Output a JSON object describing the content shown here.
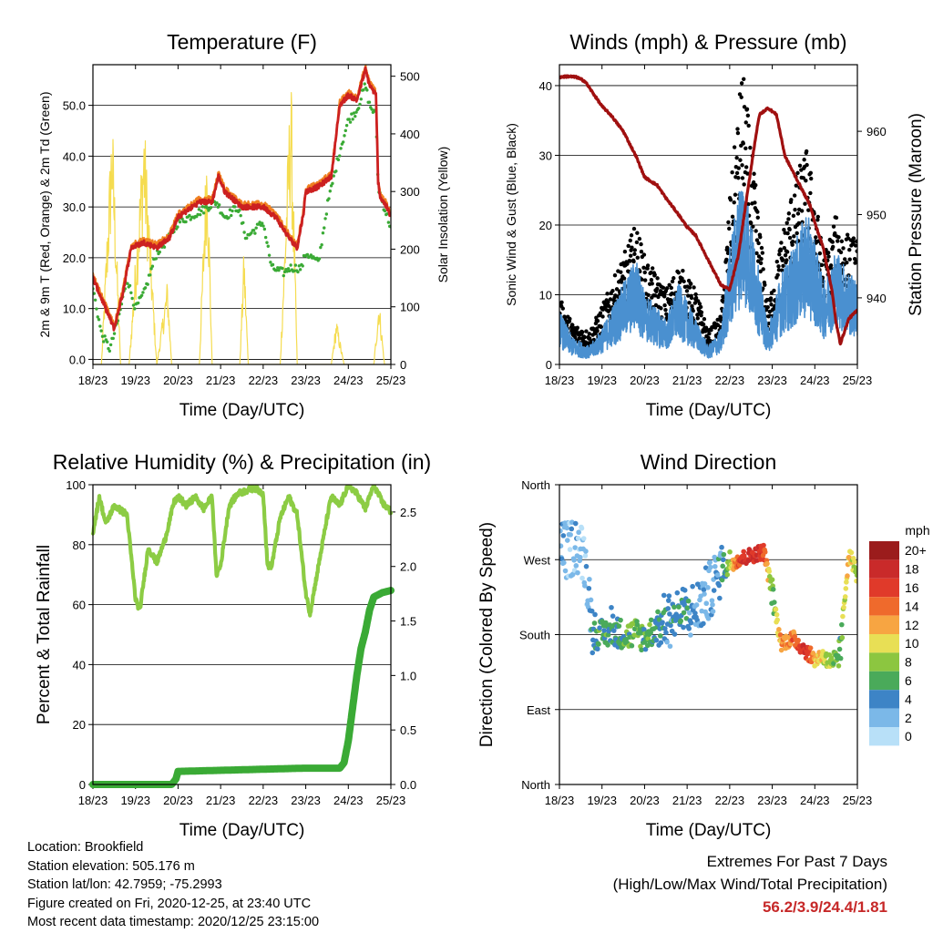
{
  "chart_data": [
    {
      "type": "line",
      "title": "Temperature (F)",
      "xlabel": "Time (Day/UTC)",
      "ylabel": "2m & 9m T (Red, Orange) & 2m Td (Green)",
      "y2label": "Solar Insolation (Yellow)",
      "x_ticks": [
        "18/23",
        "19/23",
        "20/23",
        "21/23",
        "22/23",
        "23/23",
        "24/23",
        "25/23"
      ],
      "xlim": [
        0,
        7
      ],
      "ylim": [
        -1,
        58
      ],
      "y_ticks": [
        "0.0",
        "10.0",
        "20.0",
        "30.0",
        "40.0",
        "50.0"
      ],
      "y2lim": [
        0,
        520
      ],
      "y2_ticks": [
        "0",
        "100",
        "200",
        "300",
        "400",
        "500"
      ],
      "grid": true,
      "colors": {
        "t2m": "#cc2020",
        "t9m": "#f08020",
        "td": "#3aaa35",
        "solar": "#f5dc50"
      },
      "series": [
        {
          "name": "2m T",
          "x": [
            0,
            0.3,
            0.5,
            0.7,
            0.9,
            1.2,
            1.5,
            1.8,
            2.0,
            2.5,
            2.8,
            2.95,
            3.1,
            3.5,
            4.0,
            4.3,
            4.6,
            4.8,
            4.95,
            5.0,
            5.3,
            5.6,
            5.8,
            6.0,
            6.2,
            6.4,
            6.5,
            6.65,
            6.7,
            6.75,
            6.9,
            7.0
          ],
          "y": [
            16,
            10,
            6,
            13,
            22,
            23,
            22,
            24,
            28,
            31,
            31,
            36,
            33,
            30,
            30,
            28,
            24,
            22,
            29,
            33,
            34,
            36,
            50,
            52,
            51,
            57,
            54,
            52,
            35,
            32,
            30,
            28
          ]
        },
        {
          "name": "2m Td",
          "x": [
            0,
            0.2,
            0.4,
            0.6,
            0.8,
            1.0,
            1.2,
            1.5,
            1.8,
            2.0,
            2.5,
            2.9,
            3.1,
            3.4,
            3.6,
            4.0,
            4.2,
            4.5,
            4.6,
            4.9,
            5.0,
            5.3,
            5.5,
            5.8,
            6.0,
            6.2,
            6.4,
            6.5,
            6.65,
            6.7,
            6.8,
            7.0
          ],
          "y": [
            14,
            5,
            2,
            8,
            16,
            10,
            13,
            21,
            24,
            27,
            29,
            31,
            28,
            30,
            24,
            27,
            18,
            17,
            18,
            18,
            21,
            19,
            30,
            41,
            47,
            49,
            54,
            50,
            48,
            34,
            31,
            26
          ]
        },
        {
          "name": "Solar",
          "x": [
            0.2,
            0.45,
            0.65,
            0.85,
            1.2,
            1.5,
            1.75,
            1.85,
            2.0,
            2.5,
            2.68,
            2.8,
            3.0,
            3.45,
            3.55,
            3.65,
            3.8,
            4.4,
            4.65,
            4.8,
            5.2,
            5.6,
            5.72,
            5.9,
            6.6,
            6.72,
            6.85
          ],
          "y": [
            0,
            450,
            0,
            0,
            440,
            0,
            150,
            0,
            0,
            0,
            420,
            0,
            0,
            0,
            210,
            0,
            0,
            0,
            520,
            0,
            0,
            0,
            80,
            0,
            0,
            120,
            0
          ]
        }
      ]
    },
    {
      "type": "scatter",
      "title": "Winds (mph) & Pressure (mb)",
      "xlabel": "Time (Day/UTC)",
      "ylabel": "Sonic Wind & Gust (Blue, Black)",
      "y2label": "Station Pressure (Maroon)",
      "x_ticks": [
        "18/23",
        "19/23",
        "20/23",
        "21/23",
        "22/23",
        "23/23",
        "24/23",
        "25/23"
      ],
      "xlim": [
        0,
        7
      ],
      "ylim": [
        0,
        43
      ],
      "y_ticks": [
        "0",
        "10",
        "20",
        "30",
        "40"
      ],
      "y2lim": [
        932,
        968
      ],
      "y2_ticks": [
        "940",
        "950",
        "960"
      ],
      "grid": true,
      "colors": {
        "wind": "#4a90d0",
        "gust": "#000000",
        "pressure": "#a01010"
      },
      "series": [
        {
          "name": "Sonic Wind",
          "x": [
            0,
            0.3,
            0.7,
            1.0,
            1.5,
            1.8,
            2.0,
            2.5,
            2.8,
            3.2,
            3.5,
            3.8,
            4.0,
            4.3,
            4.6,
            4.9,
            5.2,
            5.5,
            5.8,
            6.0,
            6.2,
            6.5,
            6.7,
            7.0
          ],
          "y": [
            6,
            3,
            2,
            4,
            9,
            12,
            8,
            5,
            9,
            5,
            2,
            4,
            13,
            22,
            13,
            4,
            10,
            13,
            17,
            14,
            9,
            13,
            11,
            9
          ]
        },
        {
          "name": "Gust",
          "x": [
            0,
            0.3,
            0.7,
            1.0,
            1.5,
            1.8,
            2.0,
            2.5,
            2.8,
            3.2,
            3.5,
            3.8,
            4.0,
            4.3,
            4.6,
            4.9,
            5.2,
            5.5,
            5.8,
            6.0,
            6.2,
            6.5,
            6.7,
            7.0
          ],
          "y": [
            8,
            5,
            4,
            7,
            13,
            17,
            13,
            9,
            12,
            9,
            4,
            6,
            20,
            36,
            22,
            7,
            15,
            22,
            26,
            21,
            13,
            18,
            16,
            15
          ]
        },
        {
          "name": "Station Pressure",
          "x": [
            0,
            0.2,
            0.4,
            0.6,
            0.8,
            1.0,
            1.2,
            1.5,
            1.8,
            2.0,
            2.3,
            2.5,
            2.8,
            3.0,
            3.2,
            3.4,
            3.6,
            3.8,
            4.0,
            4.2,
            4.4,
            4.6,
            4.7,
            4.9,
            5.1,
            5.3,
            5.6,
            5.9,
            6.0,
            6.2,
            6.4,
            6.5,
            6.6,
            6.7,
            6.8,
            7.0
          ],
          "y": [
            966.5,
            966.6,
            966.5,
            966.0,
            964.5,
            963,
            962,
            960,
            957,
            954.5,
            953.5,
            952,
            950,
            948.5,
            947.5,
            945.5,
            943.5,
            941.5,
            941,
            945,
            952,
            959,
            962,
            962.8,
            962,
            957,
            954,
            951,
            949,
            946,
            941,
            937,
            934.5,
            936,
            937.5,
            938.5
          ]
        }
      ]
    },
    {
      "type": "line",
      "title": "Relative Humidity (%) & Precipitation (in)",
      "xlabel": "Time (Day/UTC)",
      "ylabel": "Percent & Total Rainfall",
      "x_ticks": [
        "18/23",
        "19/23",
        "20/23",
        "21/23",
        "22/23",
        "23/23",
        "24/23",
        "25/23"
      ],
      "xlim": [
        0,
        7
      ],
      "ylim": [
        0,
        100
      ],
      "y_ticks": [
        "0",
        "20",
        "40",
        "60",
        "80",
        "100"
      ],
      "y2lim": [
        0,
        2.75
      ],
      "y2_ticks": [
        "0.0",
        "0.5",
        "1.0",
        "1.5",
        "2.0",
        "2.5"
      ],
      "grid": true,
      "colors": {
        "rh": "#8ccc44",
        "precip": "#3aaa35"
      },
      "series": [
        {
          "name": "RH",
          "x": [
            0,
            0.15,
            0.3,
            0.5,
            0.8,
            1.0,
            1.1,
            1.3,
            1.5,
            1.7,
            1.9,
            2.0,
            2.2,
            2.4,
            2.6,
            2.8,
            2.9,
            3.0,
            3.2,
            3.4,
            3.6,
            3.8,
            4.0,
            4.1,
            4.2,
            4.4,
            4.6,
            4.8,
            5.0,
            5.1,
            5.3,
            5.5,
            5.6,
            5.8,
            6.0,
            6.2,
            6.4,
            6.6,
            6.8,
            7.0
          ],
          "y": [
            84,
            96,
            87,
            93,
            90,
            62,
            58,
            79,
            74,
            82,
            94,
            96,
            93,
            96,
            92,
            96,
            70,
            73,
            93,
            97,
            98,
            99,
            97,
            73,
            73,
            89,
            96,
            90,
            64,
            57,
            73,
            89,
            96,
            93,
            100,
            97,
            92,
            100,
            94,
            91
          ]
        },
        {
          "name": "Total Precipitation",
          "x": [
            0,
            1.85,
            1.95,
            2.0,
            3.0,
            4.0,
            5.0,
            5.8,
            5.9,
            6.0,
            6.1,
            6.2,
            6.3,
            6.4,
            6.5,
            6.6,
            6.8,
            7.0
          ],
          "y": [
            0,
            0,
            0.05,
            0.12,
            0.13,
            0.14,
            0.15,
            0.15,
            0.2,
            0.4,
            0.7,
            1.0,
            1.25,
            1.4,
            1.6,
            1.72,
            1.76,
            1.78
          ]
        }
      ]
    },
    {
      "type": "scatter",
      "title": "Wind Direction",
      "xlabel": "Time (Day/UTC)",
      "ylabel": "Direction (Colored By Speed)",
      "x_ticks": [
        "18/23",
        "19/23",
        "20/23",
        "21/23",
        "22/23",
        "23/23",
        "24/23",
        "25/23"
      ],
      "xlim": [
        0,
        7
      ],
      "y_ticks": [
        "North",
        "East",
        "South",
        "West",
        "North"
      ],
      "legend": {
        "title": "mph",
        "labels": [
          "20+",
          "18",
          "16",
          "14",
          "12",
          "10",
          "8",
          "6",
          "4",
          "2",
          "0"
        ],
        "colors": [
          "#9b1c1c",
          "#c92a2a",
          "#e03a2a",
          "#ef6a2c",
          "#f7a542",
          "#e8df55",
          "#8cc640",
          "#4aaa5a",
          "#3d84c6",
          "#7bb8e8",
          "#b8e0f8"
        ]
      },
      "series": [
        {
          "name": "Direction",
          "x": [
            0,
            0.2,
            0.4,
            0.6,
            0.8,
            1.0,
            1.3,
            1.6,
            1.8,
            2.0,
            2.3,
            2.6,
            2.9,
            3.2,
            3.5,
            3.8,
            4.0,
            4.2,
            4.5,
            4.8,
            5.0,
            5.2,
            5.5,
            5.8,
            6.0,
            6.2,
            6.4,
            6.6,
            6.8,
            7.0
          ],
          "y": [
            285,
            280,
            290,
            270,
            180,
            180,
            185,
            178,
            182,
            176,
            190,
            200,
            205,
            210,
            230,
            260,
            265,
            270,
            275,
            280,
            230,
            170,
            175,
            160,
            150,
            155,
            140,
            160,
            280,
            250
          ],
          "speed": [
            3,
            2,
            2,
            1,
            5,
            6,
            5,
            6,
            7,
            6,
            5,
            4,
            5,
            3,
            2,
            4,
            8,
            16,
            18,
            16,
            6,
            12,
            14,
            18,
            12,
            10,
            8,
            6,
            12,
            8
          ]
        }
      ]
    }
  ],
  "info": {
    "location": "Location: Brookfield",
    "elevation": "Station elevation: 505.176 m",
    "latlon": "Station lat/lon: 42.7959; -75.2993",
    "created": "Figure created on Fri, 2020-12-25, at 23:40 UTC",
    "recent": "Most recent data timestamp: 2020/12/25 23:15:00"
  },
  "extremes": {
    "line1": "Extremes For Past 7 Days",
    "line2": "(High/Low/Max Wind/Total Precipitation)",
    "values": "56.2/3.9/24.4/1.81"
  }
}
